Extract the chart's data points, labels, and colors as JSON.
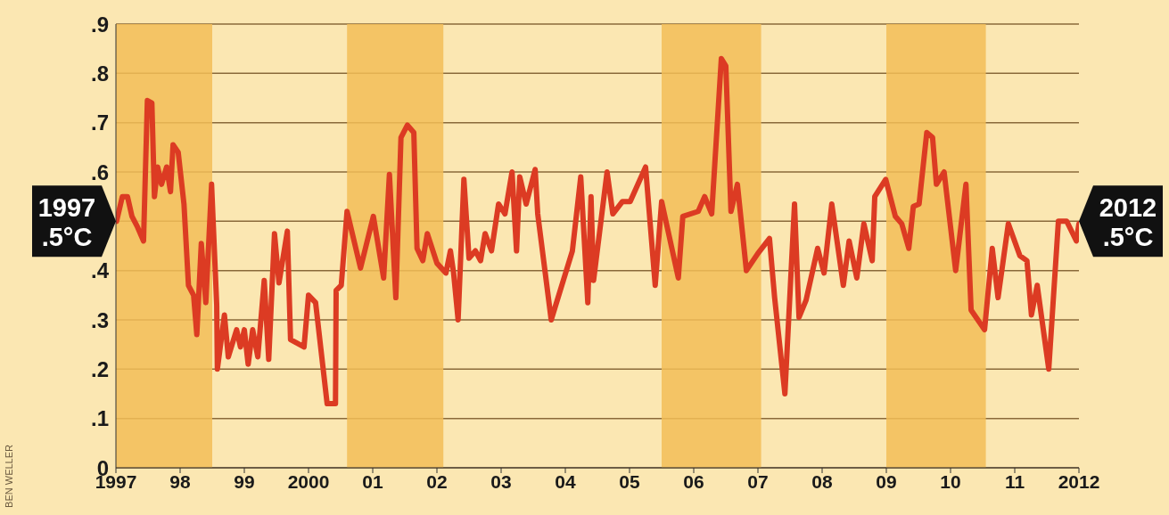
{
  "chart_data": {
    "type": "line",
    "x": [
      1997.01,
      1997.1,
      1997.18,
      1997.25,
      1997.33,
      1997.43,
      1997.49,
      1997.56,
      1997.6,
      1997.65,
      1997.71,
      1997.79,
      1997.85,
      1997.89,
      1997.97,
      1998.06,
      1998.13,
      1998.21,
      1998.26,
      1998.33,
      1998.4,
      1998.49,
      1998.57,
      1998.58,
      1998.69,
      1998.75,
      1998.88,
      1998.94,
      1999.0,
      1999.06,
      1999.13,
      1999.21,
      1999.31,
      1999.38,
      1999.47,
      1999.54,
      1999.67,
      1999.72,
      1999.93,
      2000.0,
      2000.11,
      2000.29,
      2000.42,
      2000.43,
      2000.51,
      2000.6,
      2000.81,
      2001.01,
      2001.17,
      2001.26,
      2001.36,
      2001.44,
      2001.54,
      2001.64,
      2001.69,
      2001.78,
      2001.85,
      2002.0,
      2002.14,
      2002.21,
      2002.26,
      2002.33,
      2002.42,
      2002.5,
      2002.6,
      2002.68,
      2002.75,
      2002.85,
      2002.96,
      2003.06,
      2003.17,
      2003.24,
      2003.29,
      2003.39,
      2003.53,
      2003.57,
      2003.78,
      2004.11,
      2004.24,
      2004.35,
      2004.4,
      2004.44,
      2004.65,
      2004.74,
      2004.89,
      2005.01,
      2005.25,
      2005.4,
      2005.5,
      2005.76,
      2005.83,
      2006.07,
      2006.17,
      2006.28,
      2006.43,
      2006.5,
      2006.58,
      2006.68,
      2006.82,
      2007.0,
      2007.18,
      2007.26,
      2007.42,
      2007.57,
      2007.64,
      2007.75,
      2007.93,
      2008.03,
      2008.15,
      2008.33,
      2008.42,
      2008.54,
      2008.65,
      2008.78,
      2008.82,
      2008.99,
      2009.14,
      2009.24,
      2009.35,
      2009.42,
      2009.51,
      2009.63,
      2009.72,
      2009.78,
      2009.9,
      2010.08,
      2010.24,
      2010.32,
      2010.53,
      2010.65,
      2010.74,
      2010.9,
      2011.08,
      2011.19,
      2011.26,
      2011.35,
      2011.53,
      2011.68,
      2011.81,
      2011.96,
      2012.0
    ],
    "series": [
      {
        "color": "#dc3b23",
        "values": [
          0.5,
          0.55,
          0.55,
          0.51,
          0.49,
          0.46,
          0.745,
          0.74,
          0.55,
          0.61,
          0.575,
          0.61,
          0.56,
          0.655,
          0.64,
          0.535,
          0.37,
          0.35,
          0.27,
          0.455,
          0.335,
          0.575,
          0.33,
          0.2,
          0.31,
          0.225,
          0.28,
          0.245,
          0.28,
          0.21,
          0.28,
          0.225,
          0.38,
          0.22,
          0.475,
          0.375,
          0.48,
          0.26,
          0.245,
          0.35,
          0.335,
          0.13,
          0.13,
          0.36,
          0.37,
          0.52,
          0.405,
          0.51,
          0.385,
          0.595,
          0.345,
          0.67,
          0.695,
          0.68,
          0.445,
          0.42,
          0.475,
          0.415,
          0.395,
          0.44,
          0.395,
          0.3,
          0.585,
          0.425,
          0.44,
          0.42,
          0.475,
          0.44,
          0.535,
          0.515,
          0.6,
          0.44,
          0.59,
          0.535,
          0.605,
          0.515,
          0.3,
          0.44,
          0.59,
          0.335,
          0.55,
          0.38,
          0.6,
          0.515,
          0.54,
          0.54,
          0.61,
          0.37,
          0.54,
          0.385,
          0.51,
          0.52,
          0.55,
          0.515,
          0.83,
          0.815,
          0.52,
          0.575,
          0.4,
          0.435,
          0.465,
          0.345,
          0.15,
          0.535,
          0.305,
          0.34,
          0.445,
          0.395,
          0.535,
          0.37,
          0.46,
          0.385,
          0.495,
          0.42,
          0.55,
          0.585,
          0.51,
          0.495,
          0.445,
          0.53,
          0.535,
          0.68,
          0.67,
          0.575,
          0.6,
          0.4,
          0.575,
          0.32,
          0.28,
          0.445,
          0.345,
          0.495,
          0.43,
          0.42,
          0.31,
          0.37,
          0.2,
          0.5,
          0.5,
          0.46,
          0.495
        ]
      }
    ],
    "xlim": [
      1997,
      2012
    ],
    "xticks": [
      1997,
      {
        "value": 1998,
        "label": "98"
      },
      {
        "value": 1999,
        "label": "99"
      },
      2000,
      {
        "value": 2001,
        "label": "01"
      },
      {
        "value": 2002,
        "label": "02"
      },
      {
        "value": 2003,
        "label": "03"
      },
      {
        "value": 2004,
        "label": "04"
      },
      {
        "value": 2005,
        "label": "05"
      },
      {
        "value": 2006,
        "label": "06"
      },
      {
        "value": 2007,
        "label": "07"
      },
      {
        "value": 2008,
        "label": "08"
      },
      {
        "value": 2009,
        "label": "09"
      },
      {
        "value": 2010,
        "label": "10"
      },
      {
        "value": 2011,
        "label": "11"
      },
      2012
    ],
    "ylim": [
      0,
      0.9
    ],
    "yticks": [
      0,
      {
        "value": 0.1,
        "label": ".1"
      },
      {
        "value": 0.2,
        "label": ".2"
      },
      {
        "value": 0.3,
        "label": ".3"
      },
      {
        "value": 0.4,
        "label": ".4"
      },
      {
        "value": 0.5,
        "label": null
      },
      {
        "value": 0.6,
        "label": ".6"
      },
      {
        "value": 0.7,
        "label": ".7"
      },
      {
        "value": 0.8,
        "label": ".8"
      },
      {
        "value": 0.9,
        "label": ".9"
      }
    ],
    "grid": "y",
    "marker": "none",
    "line_style": "solid",
    "bands": [
      {
        "axis": "x",
        "from": 1997.0,
        "to": 1998.5,
        "color": "#f2bd57"
      },
      {
        "axis": "x",
        "from": 2000.6,
        "to": 2002.1,
        "color": "#f2bd57"
      },
      {
        "axis": "x",
        "from": 2005.5,
        "to": 2007.05,
        "color": "#f2bd57"
      },
      {
        "axis": "x",
        "from": 2009.0,
        "to": 2010.55,
        "color": "#f2bd57"
      }
    ],
    "annotations": [
      {
        "text": "1997 .5°C",
        "x": 1997,
        "y": 0.5
      },
      {
        "text": "2012 .5°C",
        "x": 2012,
        "y": 0.5
      },
      "BEN WELLER"
    ]
  }
}
